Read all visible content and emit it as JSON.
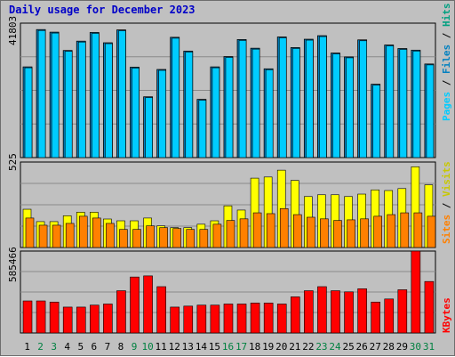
{
  "title": "Daily usage for December 2023",
  "chart_data": [
    {
      "type": "bar",
      "name": "hits-panel",
      "categories": [
        "1",
        "2",
        "3",
        "4",
        "5",
        "6",
        "7",
        "8",
        "9",
        "10",
        "11",
        "12",
        "13",
        "14",
        "15",
        "16",
        "17",
        "18",
        "19",
        "20",
        "21",
        "22",
        "23",
        "24",
        "25",
        "26",
        "27",
        "28",
        "29",
        "30",
        "31"
      ],
      "weekend_days": [
        "2",
        "3",
        "9",
        "10",
        "16",
        "17",
        "23",
        "24",
        "30",
        "31"
      ],
      "ymax_label": "41803",
      "ylim": [
        0,
        41803
      ],
      "legend": [
        "Pages",
        "Files",
        "Hits"
      ],
      "series": [
        {
          "name": "Pages",
          "values": [
            0,
            0,
            0,
            0,
            0,
            0,
            0,
            0,
            0,
            0,
            0,
            0,
            0,
            0,
            0,
            0,
            0,
            0,
            0,
            0,
            0,
            0,
            0,
            0,
            0,
            0,
            0,
            0,
            0,
            0,
            0
          ]
        },
        {
          "name": "Files",
          "values": [
            28200,
            39800,
            39000,
            33300,
            36200,
            38900,
            35700,
            39700,
            28100,
            18900,
            27400,
            37400,
            33100,
            18100,
            28200,
            31400,
            36700,
            34000,
            27600,
            37500,
            34200,
            36800,
            37900,
            32500,
            31300,
            36600,
            22800,
            35000,
            33900,
            33400,
            29100
          ]
        },
        {
          "name": "Hits",
          "values": [
            28200,
            39800,
            39000,
            33300,
            36200,
            38900,
            35700,
            39700,
            28100,
            18900,
            27400,
            37400,
            33100,
            18100,
            28200,
            31400,
            36700,
            34000,
            27600,
            37500,
            34200,
            36800,
            37900,
            32500,
            31300,
            36600,
            22800,
            35000,
            33900,
            33400,
            29100
          ]
        }
      ]
    },
    {
      "type": "bar",
      "name": "visits-panel",
      "ymax_label": "525",
      "ylim": [
        0,
        525
      ],
      "legend": [
        "Sites",
        "Visits"
      ],
      "series": [
        {
          "name": "Visits",
          "values": [
            235,
            159,
            159,
            195,
            217,
            217,
            175,
            164,
            164,
            181,
            133,
            122,
            122,
            143,
            164,
            256,
            230,
            426,
            433,
            475,
            412,
            313,
            324,
            324,
            313,
            328,
            354,
            350,
            362,
            496,
            385
          ]
        },
        {
          "name": "Sites",
          "values": [
            181,
            137,
            137,
            148,
            192,
            181,
            148,
            111,
            111,
            133,
            122,
            117,
            111,
            111,
            143,
            166,
            176,
            213,
            208,
            239,
            202,
            186,
            176,
            166,
            170,
            176,
            192,
            202,
            213,
            213,
            192
          ]
        }
      ]
    },
    {
      "type": "bar",
      "name": "kbytes-panel",
      "ymax_label": "585466",
      "ylim": [
        0,
        585466
      ],
      "legend": [
        "KBytes"
      ],
      "series": [
        {
          "name": "KBytes",
          "values": [
            229000,
            229000,
            221000,
            185000,
            185000,
            199000,
            207000,
            302000,
            400000,
            408000,
            331000,
            185000,
            192000,
            199000,
            199000,
            207000,
            207000,
            214000,
            214000,
            207000,
            258000,
            302000,
            331000,
            302000,
            294000,
            316000,
            221000,
            243000,
            309000,
            585466,
            368000
          ]
        }
      ]
    }
  ],
  "colors": {
    "background": "#c0c0c0",
    "plot_bg": "#c0c0c0",
    "title": "#0000c8",
    "pages": "#00a0e0",
    "files": "#0080c0",
    "hits": "#00ccff",
    "visits": "#ffff00",
    "sites": "#ff8000",
    "kbytes": "#ff0000",
    "weekday_label": "#000000",
    "weekend_label": "#008040"
  }
}
